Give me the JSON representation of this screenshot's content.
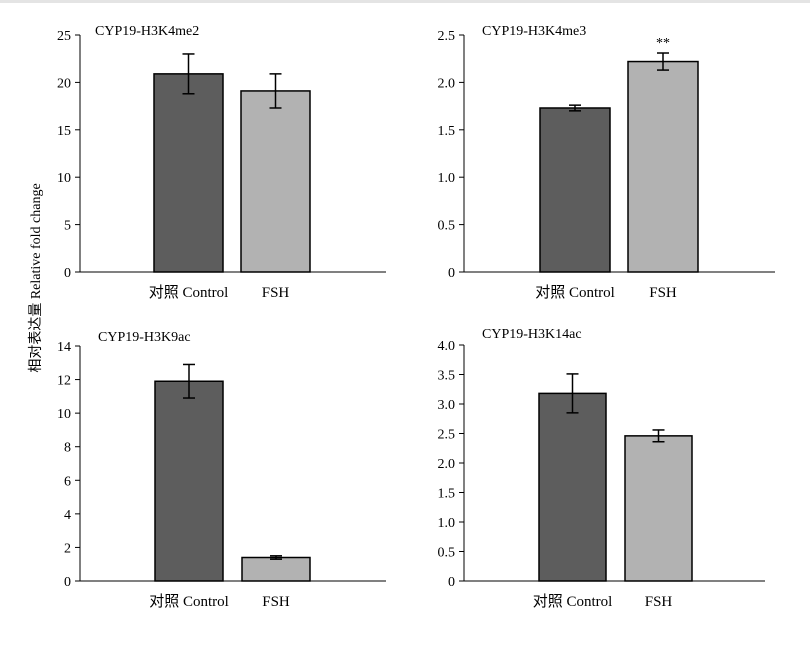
{
  "y_axis_label": "相对表达量 Relative fold change",
  "chart_data": [
    {
      "type": "bar",
      "title": "CYP19-H3K4me2",
      "categories": [
        "对照 Control",
        "FSH"
      ],
      "values": [
        20.9,
        19.1
      ],
      "errors": [
        2.1,
        1.8
      ],
      "ylim": [
        0,
        25
      ],
      "yticks": [
        "0",
        "5",
        "10",
        "15",
        "20",
        "25"
      ],
      "significance": [
        "",
        ""
      ],
      "colors": [
        "#5d5d5d",
        "#b2b2b2"
      ]
    },
    {
      "type": "bar",
      "title": "CYP19-H3K4me3",
      "categories": [
        "对照 Control",
        "FSH"
      ],
      "values": [
        1.73,
        2.22
      ],
      "errors": [
        0.03,
        0.09
      ],
      "ylim": [
        0,
        2.5
      ],
      "yticks": [
        "0",
        "0.5",
        "1.0",
        "1.5",
        "2.0",
        "2.5"
      ],
      "significance": [
        "",
        "**"
      ],
      "colors": [
        "#5d5d5d",
        "#b2b2b2"
      ]
    },
    {
      "type": "bar",
      "title": "CYP19-H3K9ac",
      "categories": [
        "对照 Control",
        "FSH"
      ],
      "values": [
        11.9,
        1.4
      ],
      "errors": [
        1.0,
        0.1
      ],
      "ylim": [
        0,
        14
      ],
      "yticks": [
        "0",
        "2",
        "4",
        "6",
        "8",
        "10",
        "12",
        "14"
      ],
      "significance": [
        "",
        ""
      ],
      "colors": [
        "#5d5d5d",
        "#b2b2b2"
      ]
    },
    {
      "type": "bar",
      "title": "CYP19-H3K14ac",
      "categories": [
        "对照 Control",
        "FSH"
      ],
      "values": [
        3.18,
        2.46
      ],
      "errors": [
        0.33,
        0.1
      ],
      "ylim": [
        0,
        4.0
      ],
      "yticks": [
        "0",
        "0.5",
        "1.0",
        "1.5",
        "2.0",
        "2.5",
        "3.0",
        "3.5",
        "4.0"
      ],
      "significance": [
        "",
        ""
      ],
      "colors": [
        "#5d5d5d",
        "#b2b2b2"
      ]
    }
  ]
}
